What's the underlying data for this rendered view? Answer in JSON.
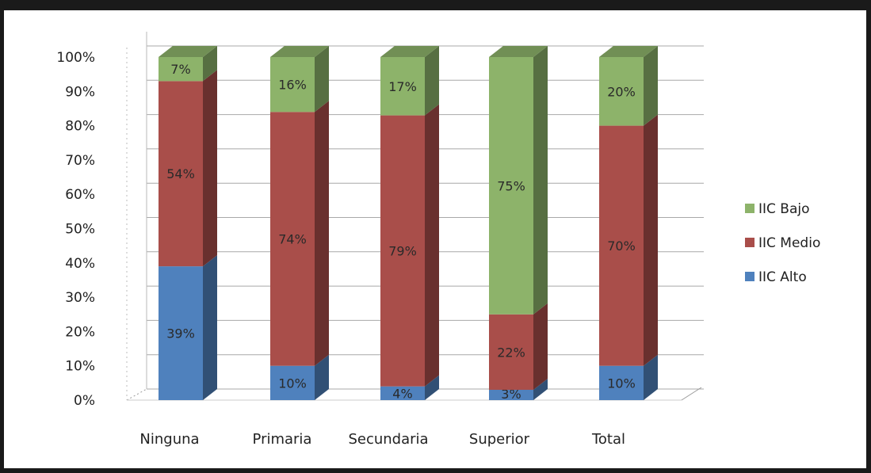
{
  "chart_data": {
    "type": "bar",
    "stacked": true,
    "percent": true,
    "style": "3d",
    "categories": [
      "Ninguna",
      "Primaria",
      "Secundaria",
      "Superior",
      "Total"
    ],
    "series": [
      {
        "name": "IIC Alto",
        "values": [
          39,
          10,
          4,
          3,
          10
        ],
        "labels": [
          "39%",
          "10%",
          "4%",
          "3%",
          "10%"
        ],
        "color": "#4f81bd"
      },
      {
        "name": "IIC Medio",
        "values": [
          54,
          74,
          79,
          22,
          70
        ],
        "labels": [
          "54%",
          "74%",
          "79%",
          "22%",
          "70%"
        ],
        "color": "#a94e4a"
      },
      {
        "name": "IIC Bajo",
        "values": [
          7,
          16,
          17,
          75,
          20
        ],
        "labels": [
          "7%",
          "16%",
          "17%",
          "75%",
          "20%"
        ],
        "color": "#8db36a"
      }
    ],
    "yticks": [
      "0%",
      "10%",
      "20%",
      "30%",
      "40%",
      "50%",
      "60%",
      "70%",
      "80%",
      "90%",
      "100%"
    ],
    "ylim": [
      0,
      100
    ],
    "grid": true,
    "legend": {
      "placement": "right",
      "order": [
        "IIC Bajo",
        "IIC Medio",
        "IIC Alto"
      ]
    },
    "title": "",
    "xlabel": "",
    "ylabel": ""
  }
}
